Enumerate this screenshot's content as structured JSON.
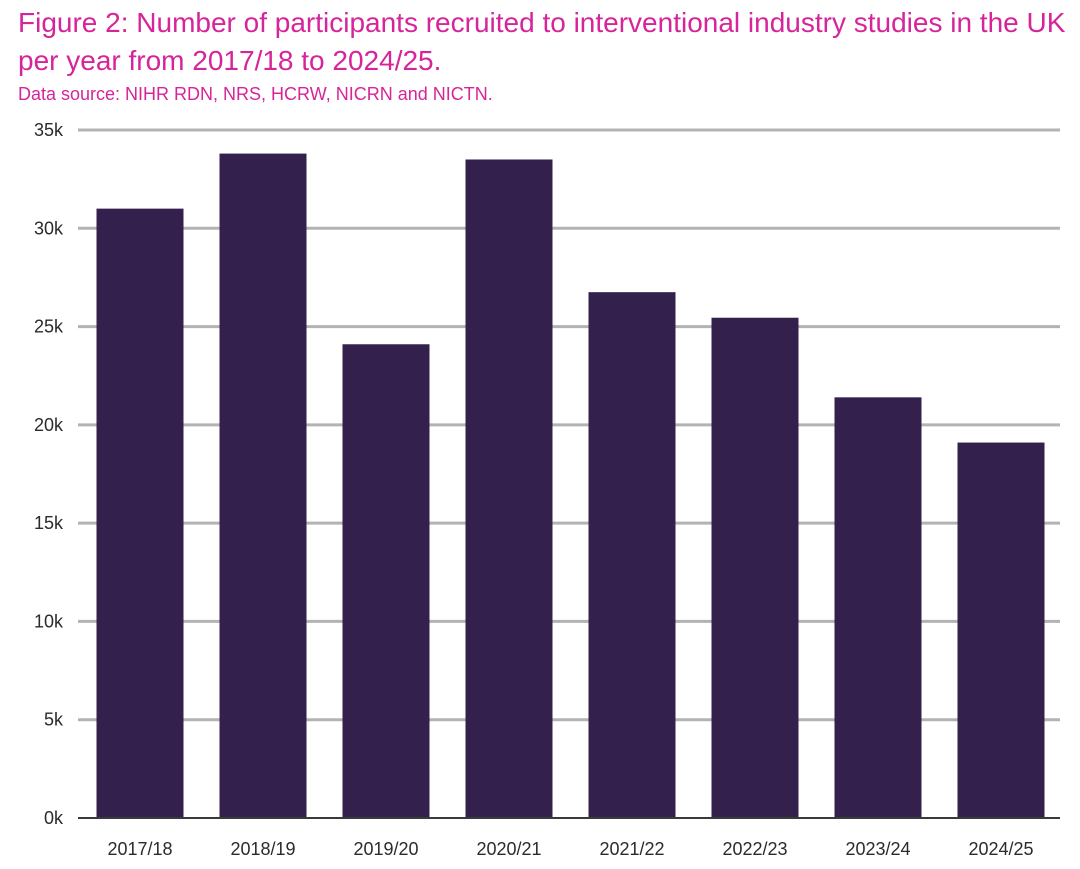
{
  "figure": {
    "title": "Figure 2: Number of participants recruited to interventional industry studies in the UK per year from 2017/18 to 2024/25.",
    "source": "Data source: NIHR RDN, NRS, HCRW, NICRN and NICTN."
  },
  "colors": {
    "title": "#d6249a",
    "bar": "#33204d",
    "grid": "#b3b3b3",
    "axis": "#3a3a3a",
    "tick_text": "#2b2b2b"
  },
  "chart_data": {
    "type": "bar",
    "title": "Figure 2: Number of participants recruited to interventional industry studies in the UK per year from 2017/18 to 2024/25.",
    "subtitle": "Data source: NIHR RDN, NRS, HCRW, NICRN and NICTN.",
    "xlabel": "",
    "ylabel": "",
    "categories": [
      "2017/18",
      "2018/19",
      "2019/20",
      "2020/21",
      "2021/22",
      "2022/23",
      "2023/24",
      "2024/25"
    ],
    "values": [
      31000,
      33800,
      24100,
      33500,
      26750,
      25450,
      21400,
      19100
    ],
    "ylim": [
      0,
      35000
    ],
    "yticks": [
      0,
      5000,
      10000,
      15000,
      20000,
      25000,
      30000,
      35000
    ],
    "ytick_labels": [
      "0k",
      "5k",
      "10k",
      "15k",
      "20k",
      "25k",
      "30k",
      "35k"
    ],
    "grid": true,
    "legend": "none"
  }
}
